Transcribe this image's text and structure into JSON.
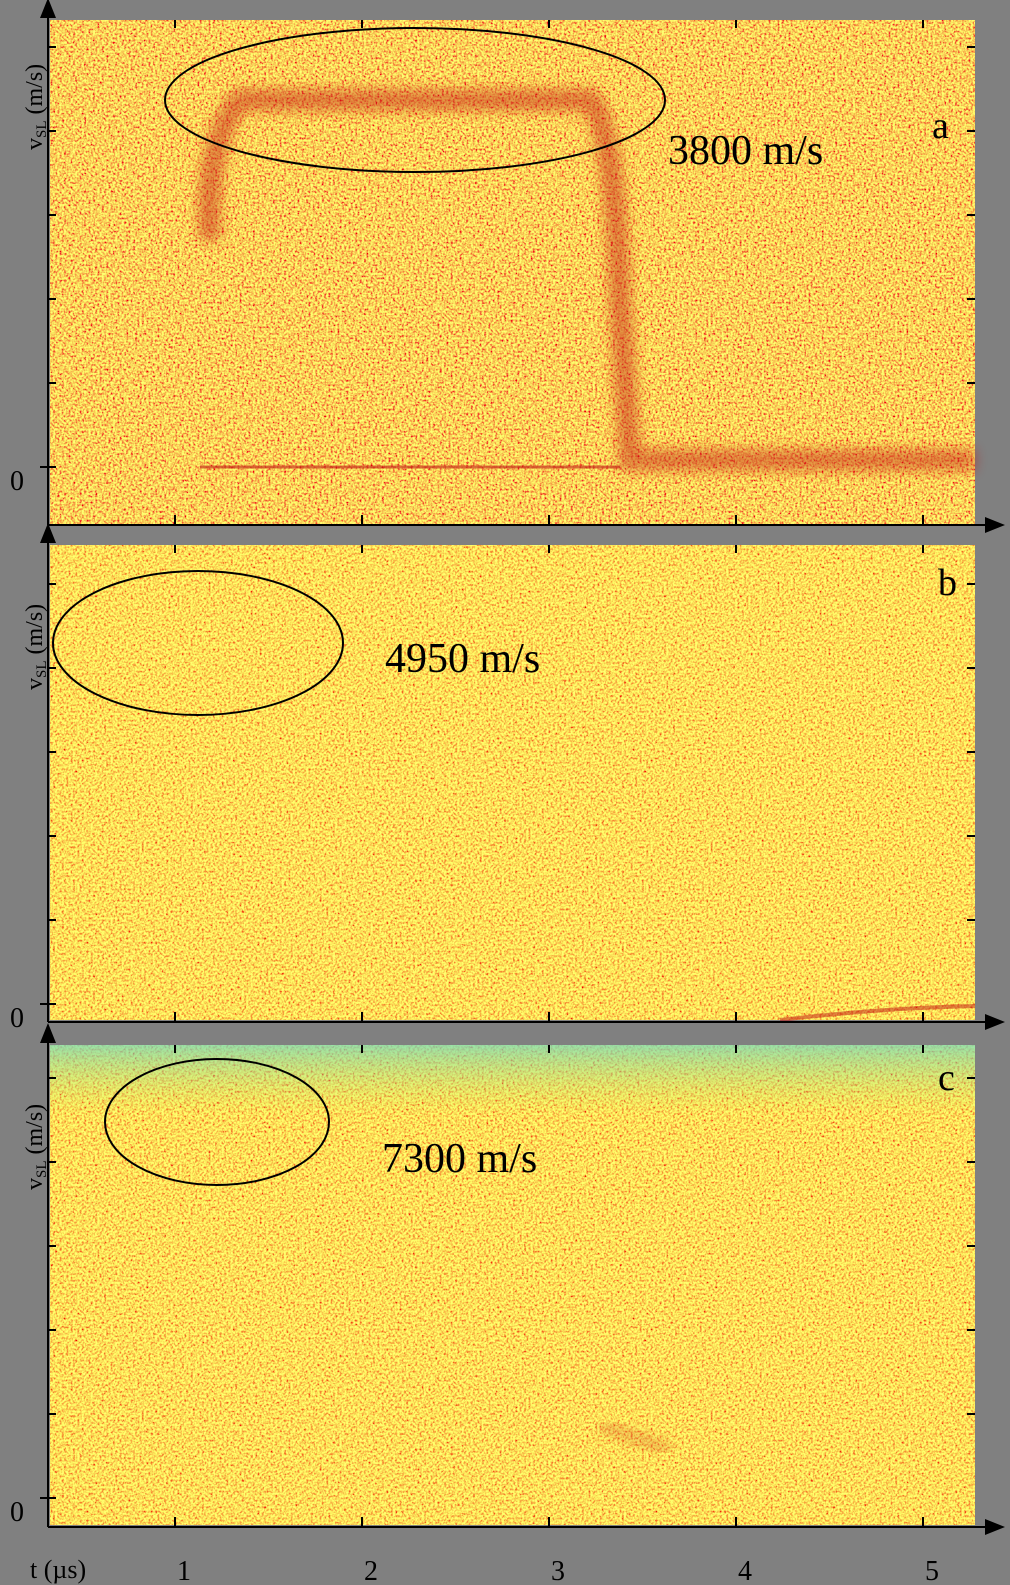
{
  "panels": [
    {
      "label": "a",
      "annotation": "3800 m/s",
      "y_label": {
        "symbol": "v",
        "subscript": "SL",
        "unit": "(m/s)"
      },
      "y_tick": "0"
    },
    {
      "label": "b",
      "annotation": "4950 m/s",
      "y_label": {
        "symbol": "v",
        "subscript": "SL",
        "unit": "(m/s)"
      },
      "y_tick": "0"
    },
    {
      "label": "c",
      "annotation": "7300 m/s",
      "y_label": {
        "symbol": "v",
        "subscript": "SL",
        "unit": "(m/s)"
      },
      "y_tick": "0"
    }
  ],
  "x_axis": {
    "label": "t (µs)",
    "ticks": [
      "1",
      "2",
      "3",
      "4",
      "5"
    ]
  }
}
